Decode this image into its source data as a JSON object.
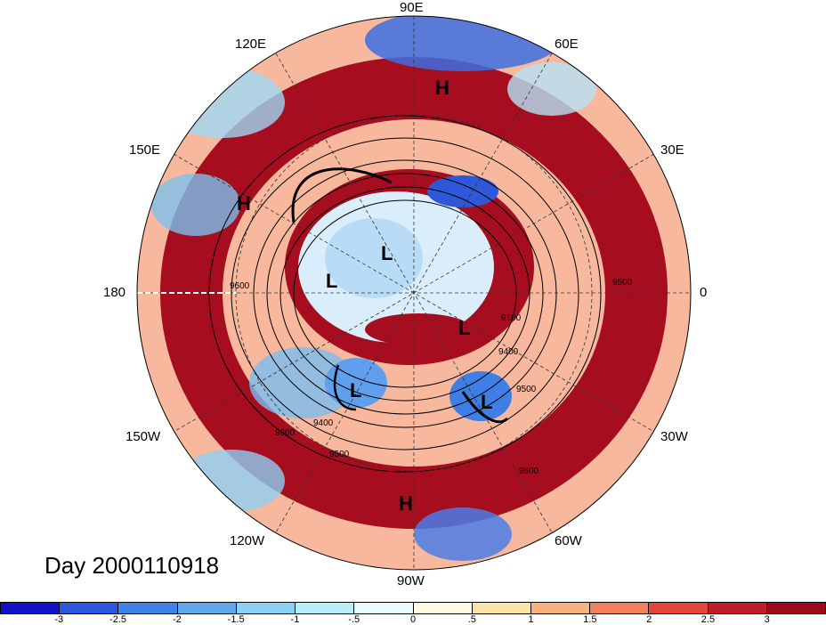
{
  "title": "Day 2000110918",
  "longitude_labels": [
    "90E",
    "60E",
    "30E",
    "0",
    "30W",
    "60W",
    "90W",
    "120W",
    "150W",
    "180",
    "150E",
    "120E"
  ],
  "pressure_centers": [
    {
      "label": "H",
      "region": "north Asia"
    },
    {
      "label": "H",
      "region": "northeast Pacific"
    },
    {
      "label": "H",
      "region": "Central America"
    },
    {
      "label": "L",
      "region": "Siberia"
    },
    {
      "label": "L",
      "region": "Arctic"
    },
    {
      "label": "L",
      "region": "Greenland"
    },
    {
      "label": "L",
      "region": "Canada"
    },
    {
      "label": "L",
      "region": "North Atlantic"
    }
  ],
  "contour_labels": [
    "9600",
    "9100",
    "9400",
    "9500",
    "9600",
    "9400",
    "9500",
    "9600",
    "9500"
  ],
  "colorbar": {
    "ticks": [
      "-3",
      "-2.5",
      "-2",
      "-1.5",
      "-1",
      "-.5",
      "0",
      ".5",
      "1",
      "1.5",
      "2",
      "2.5",
      "3"
    ],
    "colors": [
      "#1111c8",
      "#2a56e0",
      "#3f82e8",
      "#5fa8ee",
      "#8cd2f6",
      "#b8eefc",
      "#e8fbff",
      "#fffbe0",
      "#fce3a6",
      "#f8b37a",
      "#f2805a",
      "#e5463c",
      "#c21c28",
      "#9e0a1c"
    ]
  }
}
